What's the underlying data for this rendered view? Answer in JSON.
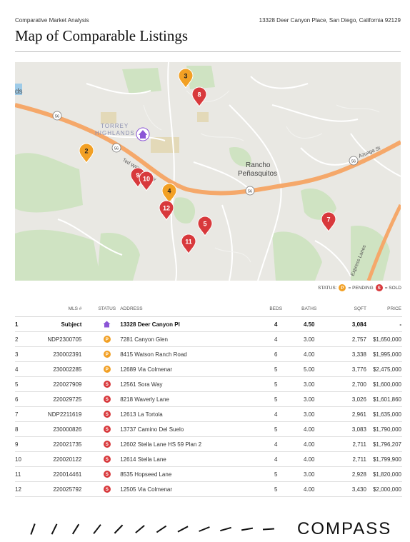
{
  "header": {
    "doc_type": "Comparative Market Analysis",
    "address": "13328 Deer Canyon Place, San Diego, California 92129"
  },
  "title": "Map of Comparable Listings",
  "map": {
    "labels": {
      "area1": "TORREY",
      "area2": "HIGHLANDS",
      "town1": "Rancho",
      "town2": "Peñasquitos",
      "road1": "Ted Williams Fwy",
      "road2": "Azuaga St",
      "road3": "Express Lanes",
      "partial": "ds",
      "shield": "56"
    },
    "markers": [
      {
        "num": "3",
        "status": "pending"
      },
      {
        "num": "8",
        "status": "sold"
      },
      {
        "num": "2",
        "status": "pending"
      },
      {
        "num": "9",
        "status": "sold"
      },
      {
        "num": "10",
        "status": "sold"
      },
      {
        "num": "4",
        "status": "pending"
      },
      {
        "num": "12",
        "status": "sold"
      },
      {
        "num": "5",
        "status": "sold"
      },
      {
        "num": "11",
        "status": "sold"
      },
      {
        "num": "7",
        "status": "sold"
      }
    ]
  },
  "legend": {
    "label": "STATUS:",
    "pending_letter": "P",
    "pending_text": "= PENDING",
    "sold_letter": "S",
    "sold_text": "= SOLD"
  },
  "colors": {
    "pending": "#F2A024",
    "sold": "#D8393C",
    "subject": "#8B55D6"
  },
  "table": {
    "headers": [
      "MLS #",
      "STATUS",
      "ADDRESS",
      "BEDS",
      "BATHS",
      "SQFT",
      "PRICE"
    ],
    "rows": [
      {
        "idx": "1",
        "mls": "Subject",
        "status": "subject",
        "address": "13328 Deer Canyon Pl",
        "beds": "4",
        "baths": "4.50",
        "sqft": "3,084",
        "price": "-"
      },
      {
        "idx": "2",
        "mls": "NDP2300705",
        "status": "P",
        "address": "7281 Canyon Glen",
        "beds": "4",
        "baths": "3.00",
        "sqft": "2,757",
        "price": "$1,650,000"
      },
      {
        "idx": "3",
        "mls": "230002391",
        "status": "P",
        "address": "8415 Watson Ranch Road",
        "beds": "6",
        "baths": "4.00",
        "sqft": "3,338",
        "price": "$1,995,000"
      },
      {
        "idx": "4",
        "mls": "230002285",
        "status": "P",
        "address": "12689 Via Colmenar",
        "beds": "5",
        "baths": "5.00",
        "sqft": "3,776",
        "price": "$2,475,000"
      },
      {
        "idx": "5",
        "mls": "220027909",
        "status": "S",
        "address": "12561 Sora Way",
        "beds": "5",
        "baths": "3.00",
        "sqft": "2,700",
        "price": "$1,600,000"
      },
      {
        "idx": "6",
        "mls": "220029725",
        "status": "S",
        "address": "8218 Waverly Lane",
        "beds": "5",
        "baths": "3.00",
        "sqft": "3,026",
        "price": "$1,601,860"
      },
      {
        "idx": "7",
        "mls": "NDP2211619",
        "status": "S",
        "address": "12613 La Tortola",
        "beds": "4",
        "baths": "3.00",
        "sqft": "2,961",
        "price": "$1,635,000"
      },
      {
        "idx": "8",
        "mls": "230000826",
        "status": "S",
        "address": "13737 Camino Del Suelo",
        "beds": "5",
        "baths": "4.00",
        "sqft": "3,083",
        "price": "$1,790,000"
      },
      {
        "idx": "9",
        "mls": "220021735",
        "status": "S",
        "address": "12602 Stella Lane HS 59 Plan 2",
        "beds": "4",
        "baths": "4.00",
        "sqft": "2,711",
        "price": "$1,796,207"
      },
      {
        "idx": "10",
        "mls": "220020122",
        "status": "S",
        "address": "12614 Stella Lane",
        "beds": "4",
        "baths": "4.00",
        "sqft": "2,711",
        "price": "$1,799,900"
      },
      {
        "idx": "11",
        "mls": "220014461",
        "status": "S",
        "address": "8535 Hopseed Lane",
        "beds": "5",
        "baths": "3.00",
        "sqft": "2,928",
        "price": "$1,820,000"
      },
      {
        "idx": "12",
        "mls": "220025792",
        "status": "S",
        "address": "12505 Via Colmenar",
        "beds": "5",
        "baths": "4.00",
        "sqft": "3,430",
        "price": "$2,000,000"
      }
    ]
  },
  "footer": {
    "logo": "COMPASS"
  }
}
